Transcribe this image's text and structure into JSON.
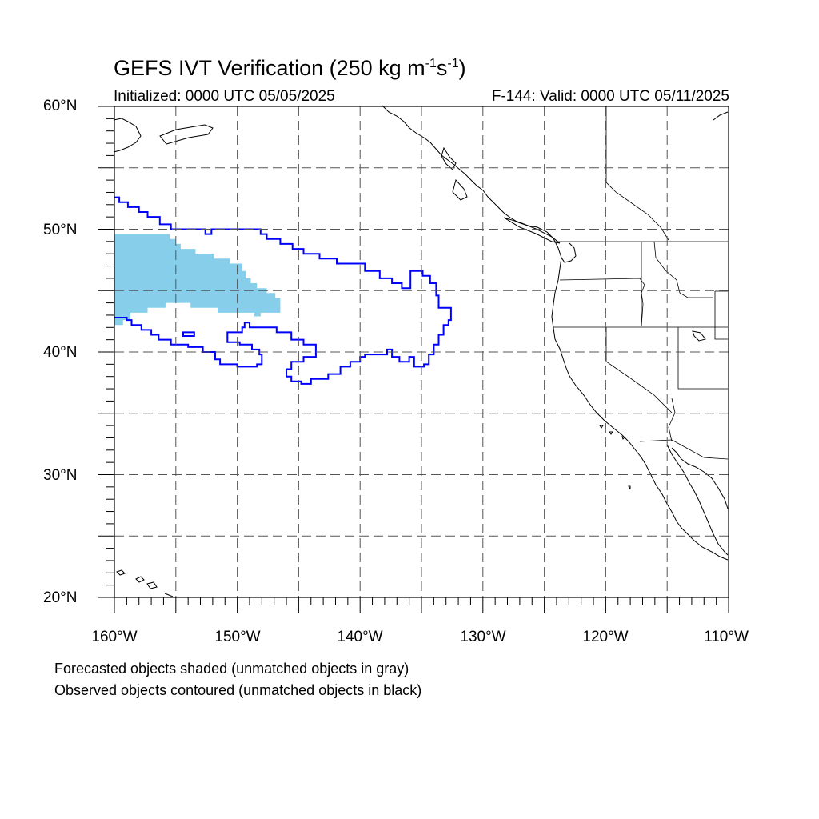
{
  "title": {
    "main": "GEFS IVT Verification (250 kg m",
    "exp1": "-1",
    "mid": "s",
    "exp2": "-1",
    "end": ")"
  },
  "init_label": "Initialized: 0000 UTC 05/05/2025",
  "valid_label": "F-144: Valid: 0000 UTC 05/11/2025",
  "lat_labels": [
    "60°N",
    "50°N",
    "40°N",
    "30°N",
    "20°N"
  ],
  "lon_labels": [
    "160°W",
    "150°W",
    "140°W",
    "130°W",
    "120°W",
    "110°W"
  ],
  "notes": [
    "Forecasted objects shaded (unmatched objects in gray)",
    "Observed objects contoured (unmatched objects in black)"
  ],
  "colors": {
    "forecast_fill": "#87ceeb",
    "observed_contour": "#0000ff",
    "coastline": "#000000",
    "grid": "#555555"
  },
  "map": {
    "projection": "cylindrical-equidistant",
    "lon_range": [
      -160,
      -110
    ],
    "lat_range": [
      20,
      60
    ],
    "gridline_step_deg": 5,
    "forecast_object": {
      "matched": true,
      "description": "IVT object shaded",
      "outline_lonlat": [
        [
          -160,
          49.6
        ],
        [
          -155.5,
          49.6
        ],
        [
          -155.5,
          49.2
        ],
        [
          -155,
          49.2
        ],
        [
          -155,
          48.8
        ],
        [
          -154.6,
          48.8
        ],
        [
          -154.6,
          48.4
        ],
        [
          -153.4,
          48.4
        ],
        [
          -153.4,
          48.0
        ],
        [
          -151.9,
          48.0
        ],
        [
          -151.9,
          47.6
        ],
        [
          -150.6,
          47.6
        ],
        [
          -150.6,
          47.2
        ],
        [
          -149.6,
          47.2
        ],
        [
          -149.6,
          46.6
        ],
        [
          -149.3,
          46.6
        ],
        [
          -149.3,
          46
        ],
        [
          -148.9,
          46
        ],
        [
          -148.9,
          45.6
        ],
        [
          -148.4,
          45.6
        ],
        [
          -148.4,
          45.2
        ],
        [
          -147.6,
          45.2
        ],
        [
          -147.6,
          44.8
        ],
        [
          -146.9,
          44.8
        ],
        [
          -146.9,
          44.4
        ],
        [
          -146.5,
          44.4
        ],
        [
          -146.5,
          43.6
        ],
        [
          -146.5,
          43.2
        ],
        [
          -148.1,
          43.2
        ],
        [
          -148.1,
          42.9
        ],
        [
          -148.6,
          42.9
        ],
        [
          -148.6,
          43.2
        ],
        [
          -151.6,
          43.2
        ],
        [
          -151.6,
          43.6
        ],
        [
          -153.8,
          43.6
        ],
        [
          -153.8,
          44
        ],
        [
          -155.8,
          44
        ],
        [
          -155.8,
          43.6
        ],
        [
          -157.3,
          43.6
        ],
        [
          -157.3,
          43.2
        ],
        [
          -158.7,
          43.2
        ],
        [
          -158.7,
          42.6
        ],
        [
          -159.3,
          42.6
        ],
        [
          -159.3,
          42.2
        ],
        [
          -160,
          42.2
        ]
      ]
    },
    "observed_object": {
      "matched": true,
      "outline_lonlat": [
        [
          -160,
          52.6
        ],
        [
          -159.6,
          52.6
        ],
        [
          -159.6,
          52.2
        ],
        [
          -158.9,
          52.2
        ],
        [
          -158.9,
          51.8
        ],
        [
          -158.0,
          51.8
        ],
        [
          -158.0,
          51.4
        ],
        [
          -157.3,
          51.4
        ],
        [
          -157.3,
          51.0
        ],
        [
          -156.3,
          51.0
        ],
        [
          -156.3,
          50.4
        ],
        [
          -155.4,
          50.4
        ],
        [
          -155.4,
          50.0
        ],
        [
          -152.6,
          50.0
        ],
        [
          -152.6,
          49.6
        ],
        [
          -152.1,
          49.6
        ],
        [
          -152.1,
          50.0
        ],
        [
          -148.1,
          50.0
        ],
        [
          -148.1,
          49.6
        ],
        [
          -147.6,
          49.6
        ],
        [
          -147.6,
          49.2
        ],
        [
          -146.5,
          49.2
        ],
        [
          -146.5,
          48.8
        ],
        [
          -145.5,
          48.8
        ],
        [
          -145.5,
          48.4
        ],
        [
          -144.6,
          48.4
        ],
        [
          -144.6,
          48.0
        ],
        [
          -143.3,
          48.0
        ],
        [
          -143.3,
          47.6
        ],
        [
          -141.9,
          47.6
        ],
        [
          -141.9,
          47.2
        ],
        [
          -139.6,
          47.2
        ],
        [
          -139.6,
          46.6
        ],
        [
          -138.4,
          46.6
        ],
        [
          -138.4,
          46.0
        ],
        [
          -137.4,
          46.0
        ],
        [
          -137.4,
          45.6
        ],
        [
          -136.6,
          45.6
        ],
        [
          -136.6,
          45.2
        ],
        [
          -135.9,
          45.2
        ],
        [
          -135.9,
          46.6
        ],
        [
          -134.9,
          46.6
        ],
        [
          -134.9,
          46.2
        ],
        [
          -134.3,
          46.2
        ],
        [
          -134.3,
          45.6
        ],
        [
          -133.8,
          45.6
        ],
        [
          -133.8,
          44.6
        ],
        [
          -133.6,
          44.6
        ],
        [
          -133.6,
          43.6
        ],
        [
          -132.6,
          43.6
        ],
        [
          -132.6,
          42.6
        ],
        [
          -132.8,
          42.6
        ],
        [
          -132.8,
          42.2
        ],
        [
          -133.2,
          42.2
        ],
        [
          -133.2,
          41.4
        ],
        [
          -133.6,
          41.4
        ],
        [
          -133.6,
          40.6
        ],
        [
          -134.0,
          40.6
        ],
        [
          -134.0,
          39.8
        ],
        [
          -134.4,
          39.8
        ],
        [
          -134.4,
          39.0
        ],
        [
          -134.8,
          39.0
        ],
        [
          -134.8,
          38.8
        ],
        [
          -135.6,
          38.8
        ],
        [
          -135.6,
          39.6
        ],
        [
          -136.0,
          39.6
        ],
        [
          -136.0,
          39.2
        ],
        [
          -136.8,
          39.2
        ],
        [
          -136.8,
          39.6
        ],
        [
          -137.4,
          39.6
        ],
        [
          -137.4,
          40.2
        ],
        [
          -137.8,
          40.2
        ],
        [
          -137.8,
          39.8
        ],
        [
          -139.6,
          39.8
        ],
        [
          -139.6,
          39.6
        ],
        [
          -140.0,
          39.6
        ],
        [
          -140.0,
          39.2
        ],
        [
          -140.8,
          39.2
        ],
        [
          -140.8,
          38.8
        ],
        [
          -141.6,
          38.8
        ],
        [
          -141.6,
          38.2
        ],
        [
          -142.6,
          38.2
        ],
        [
          -142.6,
          37.8
        ],
        [
          -144.0,
          37.8
        ],
        [
          -144.0,
          37.4
        ],
        [
          -144.8,
          37.4
        ],
        [
          -144.8,
          37.6
        ],
        [
          -145.6,
          37.6
        ],
        [
          -145.6,
          38.0
        ],
        [
          -146.0,
          38.0
        ],
        [
          -146.0,
          38.6
        ],
        [
          -145.6,
          38.6
        ],
        [
          -145.6,
          39.2
        ],
        [
          -144.6,
          39.2
        ],
        [
          -144.6,
          39.6
        ],
        [
          -143.6,
          39.6
        ],
        [
          -143.6,
          40.0
        ],
        [
          -143.6,
          40.6
        ],
        [
          -144.6,
          40.6
        ],
        [
          -144.6,
          41.0
        ],
        [
          -145.6,
          41.0
        ],
        [
          -145.6,
          41.6
        ],
        [
          -146.8,
          41.6
        ],
        [
          -146.8,
          42.0
        ],
        [
          -149.0,
          42.0
        ],
        [
          -149.0,
          42.4
        ],
        [
          -149.4,
          42.4
        ],
        [
          -149.4,
          42.0
        ],
        [
          -149.6,
          42.0
        ],
        [
          -149.6,
          41.6
        ],
        [
          -150.8,
          41.6
        ],
        [
          -150.8,
          41.2
        ],
        [
          -150.8,
          40.8
        ],
        [
          -149.8,
          40.8
        ],
        [
          -149.8,
          40.6
        ],
        [
          -148.8,
          40.6
        ],
        [
          -148.8,
          40.2
        ],
        [
          -148.2,
          40.2
        ],
        [
          -148.2,
          39.8
        ],
        [
          -148.0,
          39.8
        ],
        [
          -148.0,
          39.0
        ],
        [
          -148.4,
          39.0
        ],
        [
          -148.4,
          38.8
        ],
        [
          -150.0,
          38.8
        ],
        [
          -150.0,
          39.0
        ],
        [
          -151.4,
          39.0
        ],
        [
          -151.4,
          39.4
        ],
        [
          -151.8,
          39.4
        ],
        [
          -151.8,
          40.0
        ],
        [
          -152.8,
          40.0
        ],
        [
          -152.8,
          40.4
        ],
        [
          -154.0,
          40.4
        ],
        [
          -154.0,
          40.6
        ],
        [
          -155.4,
          40.6
        ],
        [
          -155.4,
          41.0
        ],
        [
          -156.4,
          41.0
        ],
        [
          -156.4,
          41.4
        ],
        [
          -157.0,
          41.4
        ],
        [
          -157.0,
          41.8
        ],
        [
          -157.8,
          41.8
        ],
        [
          -157.8,
          42.2
        ],
        [
          -158.6,
          42.2
        ],
        [
          -158.6,
          42.6
        ],
        [
          -159.0,
          42.6
        ],
        [
          -159.0,
          42.8
        ],
        [
          -160,
          42.8
        ]
      ],
      "islands_lonlat": [
        [
          [
            -154.4,
            41.6
          ],
          [
            -153.5,
            41.6
          ],
          [
            -153.5,
            41.3
          ],
          [
            -154.4,
            41.3
          ]
        ]
      ]
    }
  }
}
